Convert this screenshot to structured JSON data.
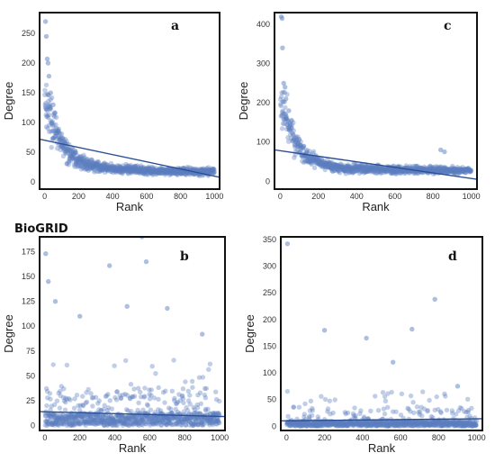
{
  "figure_label": "BioGRID",
  "colors": {
    "point": "#5b7fbf",
    "fit": "#2a4f94",
    "frame": "#111111"
  },
  "chart_data": [
    {
      "type": "scatter",
      "panel": "a",
      "xlabel": "Rank",
      "ylabel": "Degree",
      "xlim": [
        -30,
        1030
      ],
      "ylim": [
        -12,
        285
      ],
      "xticks": [
        0,
        200,
        400,
        600,
        800,
        1000
      ],
      "yticks": [
        0,
        50,
        100,
        150,
        200,
        250
      ],
      "fit": {
        "x": [
          -30,
          1030
        ],
        "y": [
          72,
          8
        ]
      },
      "extreme_points": [
        [
          5,
          270
        ],
        [
          10,
          245
        ],
        [
          15,
          207
        ],
        [
          20,
          200
        ],
        [
          25,
          178
        ],
        [
          35,
          150
        ],
        [
          50,
          130
        ]
      ],
      "trend": {
        "A": 120,
        "k": 90,
        "C": 15
      }
    },
    {
      "type": "scatter",
      "panel": "b",
      "xlabel": "Rank",
      "ylabel": "Degree",
      "xlim": [
        -30,
        1030
      ],
      "ylim": [
        -5,
        190
      ],
      "xticks": [
        0,
        200,
        400,
        600,
        800,
        1000
      ],
      "yticks": [
        0,
        25,
        50,
        75,
        100,
        125,
        150,
        175
      ],
      "fit": {
        "x": [
          -30,
          1030
        ],
        "y": [
          14,
          9
        ]
      },
      "extreme_points": [
        [
          5,
          173
        ],
        [
          20,
          145
        ],
        [
          60,
          125
        ],
        [
          200,
          110
        ],
        [
          370,
          161
        ],
        [
          555,
          190
        ],
        [
          580,
          165
        ],
        [
          470,
          120
        ],
        [
          700,
          118
        ],
        [
          900,
          92
        ]
      ],
      "trend": {
        "A": 0,
        "k": 100,
        "C": 8
      }
    },
    {
      "type": "scatter",
      "panel": "c",
      "xlabel": "Rank",
      "ylabel": "Degree",
      "xlim": [
        -30,
        1030
      ],
      "ylim": [
        -20,
        430
      ],
      "xticks": [
        0,
        200,
        400,
        600,
        800,
        1000
      ],
      "yticks": [
        0,
        100,
        200,
        300,
        400
      ],
      "fit": {
        "x": [
          -30,
          1030
        ],
        "y": [
          80,
          5
        ]
      },
      "extreme_points": [
        [
          5,
          420
        ],
        [
          10,
          415
        ],
        [
          12,
          340
        ],
        [
          18,
          250
        ],
        [
          25,
          240
        ],
        [
          30,
          210
        ],
        [
          45,
          180
        ],
        [
          840,
          80
        ],
        [
          860,
          75
        ]
      ],
      "trend": {
        "A": 180,
        "k": 80,
        "C": 25
      }
    },
    {
      "type": "scatter",
      "panel": "d",
      "xlabel": "Rank",
      "ylabel": "Degree",
      "xlim": [
        -30,
        1030
      ],
      "ylim": [
        -8,
        355
      ],
      "xticks": [
        0,
        200,
        400,
        600,
        800,
        1000
      ],
      "yticks": [
        0,
        50,
        100,
        150,
        200,
        250,
        300,
        350
      ],
      "fit": {
        "x": [
          -30,
          1030
        ],
        "y": [
          10,
          14
        ]
      },
      "extreme_points": [
        [
          5,
          342
        ],
        [
          200,
          180
        ],
        [
          420,
          165
        ],
        [
          660,
          182
        ],
        [
          780,
          238
        ],
        [
          560,
          120
        ],
        [
          900,
          75
        ]
      ],
      "trend": {
        "A": 0,
        "k": 100,
        "C": 6
      }
    }
  ]
}
